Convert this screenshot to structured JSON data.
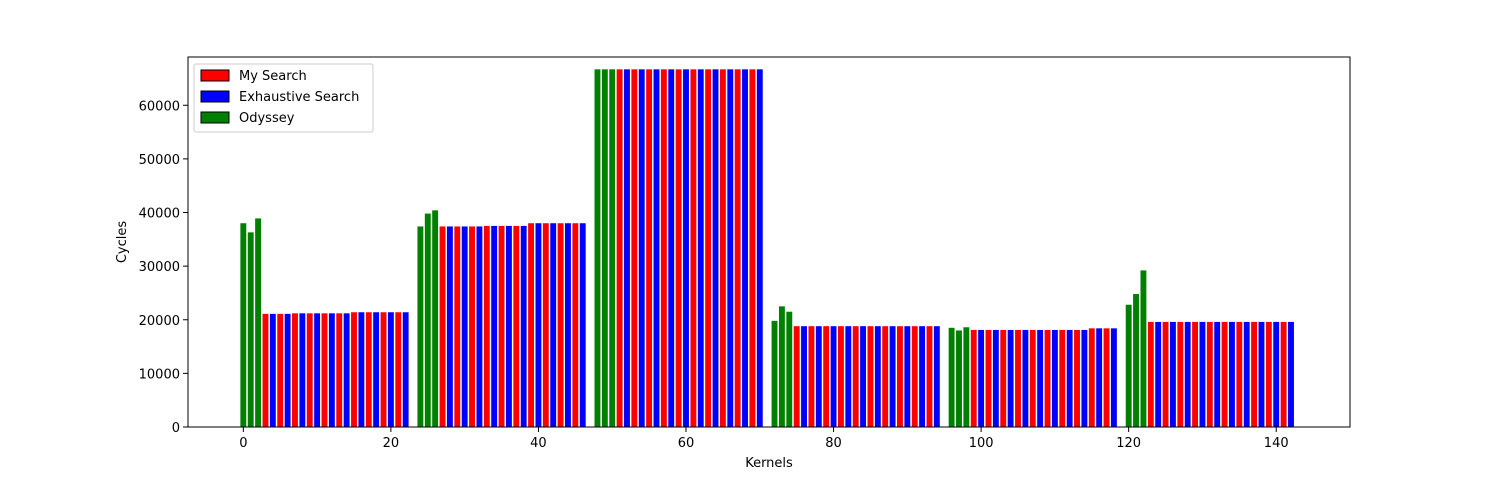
{
  "chart_data": {
    "type": "bar",
    "title": "",
    "xlabel": "Kernels",
    "ylabel": "Cycles",
    "xlim": [
      -7.5,
      150
    ],
    "ylim": [
      0,
      69000
    ],
    "xticks": [
      0,
      20,
      40,
      60,
      80,
      100,
      120,
      140
    ],
    "yticks": [
      0,
      10000,
      20000,
      30000,
      40000,
      50000,
      60000
    ],
    "legend": {
      "placement": "top-left"
    },
    "grid": false,
    "series": [
      {
        "name": "My Search",
        "color": "#ff0000",
        "points": [
          [
            3,
            21100
          ],
          [
            5,
            21100
          ],
          [
            7,
            21200
          ],
          [
            9,
            21200
          ],
          [
            11,
            21200
          ],
          [
            13,
            21200
          ],
          [
            15,
            21400
          ],
          [
            17,
            21400
          ],
          [
            19,
            21400
          ],
          [
            21,
            21400
          ],
          [
            27,
            37400
          ],
          [
            29,
            37400
          ],
          [
            31,
            37400
          ],
          [
            33,
            37500
          ],
          [
            35,
            37500
          ],
          [
            37,
            37500
          ],
          [
            39,
            38000
          ],
          [
            41,
            38000
          ],
          [
            43,
            38000
          ],
          [
            45,
            38000
          ],
          [
            51,
            66700
          ],
          [
            53,
            66700
          ],
          [
            55,
            66700
          ],
          [
            57,
            66700
          ],
          [
            59,
            66700
          ],
          [
            61,
            66700
          ],
          [
            63,
            66700
          ],
          [
            65,
            66700
          ],
          [
            67,
            66700
          ],
          [
            69,
            66700
          ],
          [
            75,
            18800
          ],
          [
            77,
            18800
          ],
          [
            79,
            18800
          ],
          [
            81,
            18800
          ],
          [
            83,
            18800
          ],
          [
            85,
            18800
          ],
          [
            87,
            18800
          ],
          [
            89,
            18800
          ],
          [
            91,
            18800
          ],
          [
            93,
            18800
          ],
          [
            99,
            18100
          ],
          [
            101,
            18100
          ],
          [
            103,
            18100
          ],
          [
            105,
            18100
          ],
          [
            107,
            18100
          ],
          [
            109,
            18100
          ],
          [
            111,
            18100
          ],
          [
            113,
            18100
          ],
          [
            115,
            18400
          ],
          [
            117,
            18400
          ],
          [
            123,
            19600
          ],
          [
            125,
            19600
          ],
          [
            127,
            19600
          ],
          [
            129,
            19600
          ],
          [
            131,
            19600
          ],
          [
            133,
            19600
          ],
          [
            135,
            19600
          ],
          [
            137,
            19600
          ],
          [
            139,
            19600
          ],
          [
            141,
            19600
          ]
        ]
      },
      {
        "name": "Exhaustive Search",
        "color": "#0000ff",
        "points": [
          [
            4,
            21100
          ],
          [
            6,
            21100
          ],
          [
            8,
            21200
          ],
          [
            10,
            21200
          ],
          [
            12,
            21200
          ],
          [
            14,
            21200
          ],
          [
            16,
            21400
          ],
          [
            18,
            21400
          ],
          [
            20,
            21400
          ],
          [
            22,
            21400
          ],
          [
            28,
            37400
          ],
          [
            30,
            37400
          ],
          [
            32,
            37400
          ],
          [
            34,
            37500
          ],
          [
            36,
            37500
          ],
          [
            38,
            37500
          ],
          [
            40,
            38000
          ],
          [
            42,
            38000
          ],
          [
            44,
            38000
          ],
          [
            46,
            38000
          ],
          [
            52,
            66700
          ],
          [
            54,
            66700
          ],
          [
            56,
            66700
          ],
          [
            58,
            66700
          ],
          [
            60,
            66700
          ],
          [
            62,
            66700
          ],
          [
            64,
            66700
          ],
          [
            66,
            66700
          ],
          [
            68,
            66700
          ],
          [
            70,
            66700
          ],
          [
            76,
            18800
          ],
          [
            78,
            18800
          ],
          [
            80,
            18800
          ],
          [
            82,
            18800
          ],
          [
            84,
            18800
          ],
          [
            86,
            18800
          ],
          [
            88,
            18800
          ],
          [
            90,
            18800
          ],
          [
            92,
            18800
          ],
          [
            94,
            18800
          ],
          [
            100,
            18100
          ],
          [
            102,
            18100
          ],
          [
            104,
            18100
          ],
          [
            106,
            18100
          ],
          [
            108,
            18100
          ],
          [
            110,
            18100
          ],
          [
            112,
            18100
          ],
          [
            114,
            18100
          ],
          [
            116,
            18400
          ],
          [
            118,
            18400
          ],
          [
            124,
            19600
          ],
          [
            126,
            19600
          ],
          [
            128,
            19600
          ],
          [
            130,
            19600
          ],
          [
            132,
            19600
          ],
          [
            134,
            19600
          ],
          [
            136,
            19600
          ],
          [
            138,
            19600
          ],
          [
            140,
            19600
          ],
          [
            142,
            19600
          ]
        ]
      },
      {
        "name": "Odyssey",
        "color": "#008000",
        "points": [
          [
            0,
            38000
          ],
          [
            1,
            36300
          ],
          [
            2,
            38900
          ],
          [
            24,
            37400
          ],
          [
            25,
            39800
          ],
          [
            26,
            40400
          ],
          [
            48,
            66700
          ],
          [
            49,
            66700
          ],
          [
            50,
            66700
          ],
          [
            72,
            19800
          ],
          [
            73,
            22500
          ],
          [
            74,
            21500
          ],
          [
            96,
            18500
          ],
          [
            97,
            18000
          ],
          [
            98,
            18600
          ],
          [
            120,
            22800
          ],
          [
            121,
            24800
          ],
          [
            122,
            29200
          ]
        ]
      }
    ]
  }
}
